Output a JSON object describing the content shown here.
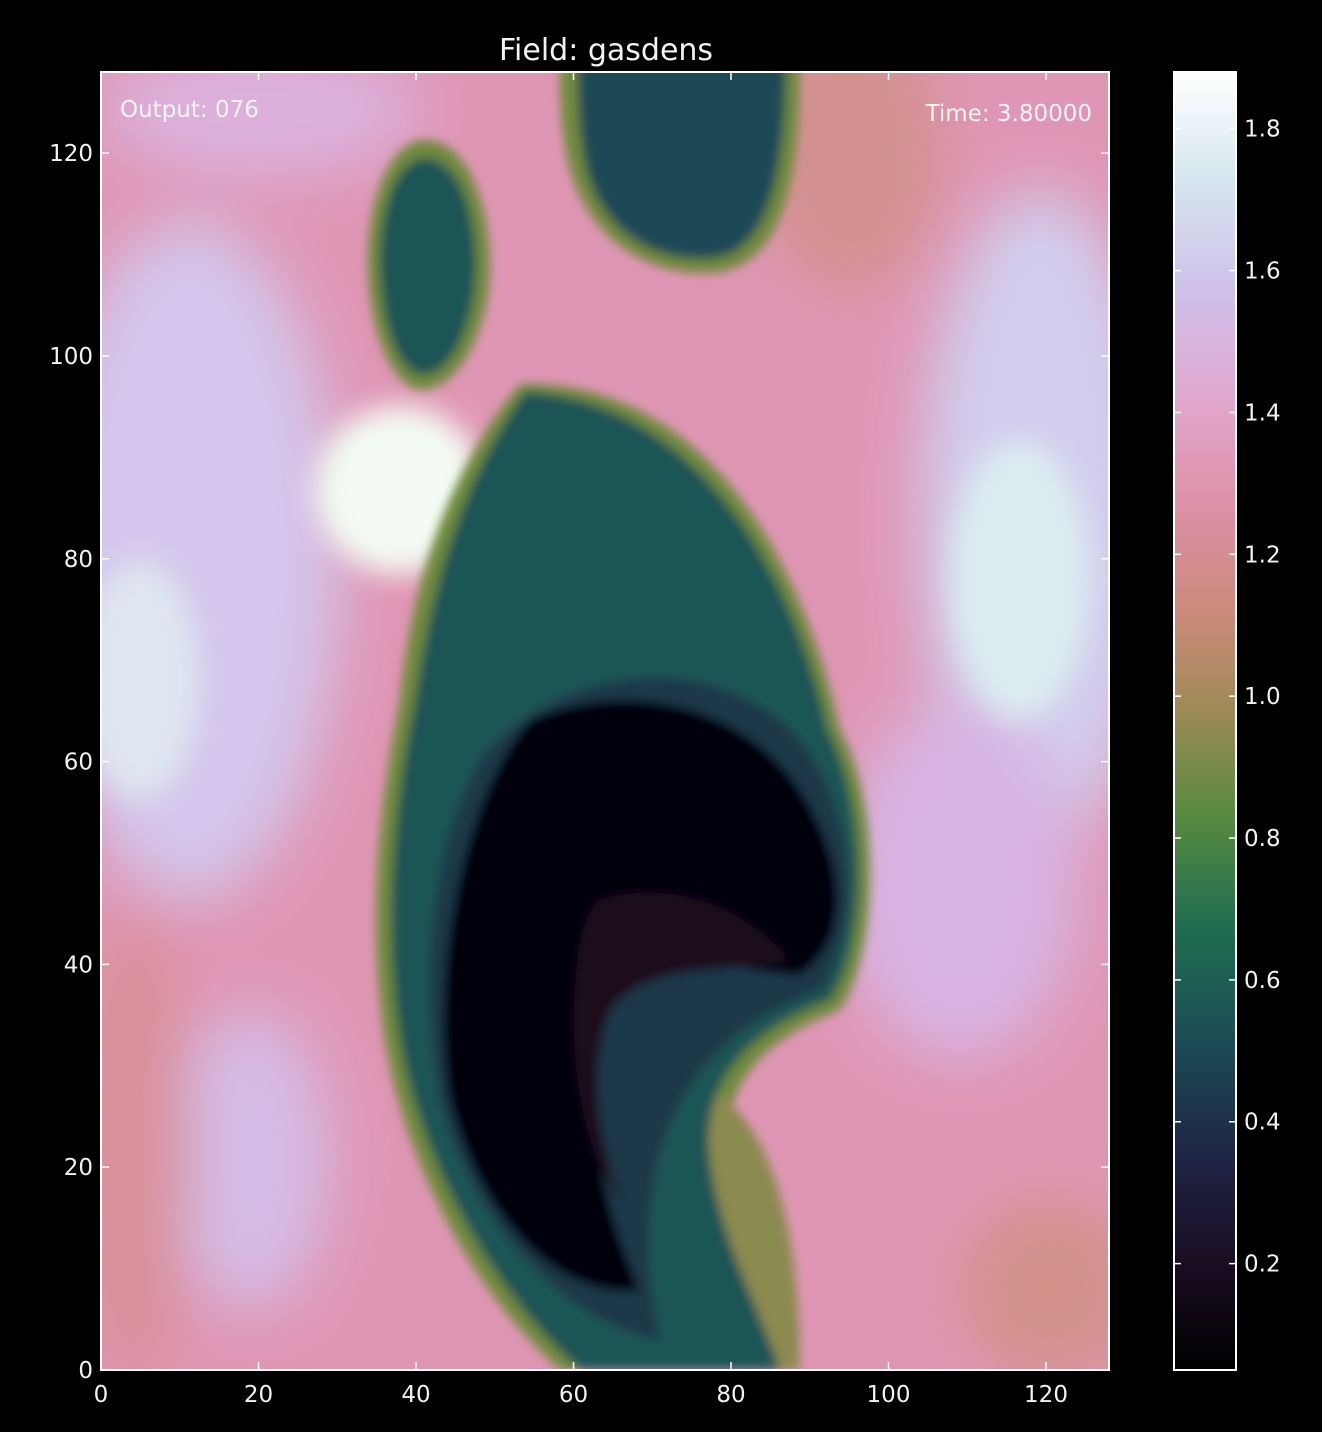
{
  "chart_data": {
    "type": "heatmap",
    "title": "Field: gasdens",
    "xlabel": "",
    "ylabel": "",
    "xlim": [
      0,
      128
    ],
    "ylim": [
      0,
      128
    ],
    "x_ticks": [
      "0",
      "20",
      "40",
      "60",
      "80",
      "100",
      "120"
    ],
    "y_ticks": [
      "0",
      "20",
      "40",
      "60",
      "80",
      "100",
      "120"
    ],
    "annotations": {
      "output": "Output: 076",
      "time": "Time: 3.80000"
    },
    "colormap": "cubehelix",
    "colorbar": {
      "range": [
        0.05,
        1.88
      ],
      "ticks": [
        "0.2",
        "0.4",
        "0.6",
        "0.8",
        "1.0",
        "1.2",
        "1.4",
        "1.6",
        "1.8"
      ]
    },
    "background": "#000000",
    "field_features": [
      {
        "shape": "cavity",
        "x": 62,
        "y": 40,
        "rx": 12,
        "ry": 22,
        "value": 0.1
      },
      {
        "shape": "envelope",
        "x": 64,
        "y": 45,
        "rx": 22,
        "ry": 45,
        "value": 0.5
      },
      {
        "shape": "blob",
        "x": 40,
        "y": 108,
        "rx": 7,
        "ry": 11,
        "value": 0.45
      },
      {
        "shape": "blob",
        "x": 74,
        "y": 122,
        "rx": 12,
        "ry": 11,
        "value": 0.4
      },
      {
        "shape": "bright",
        "x": 38,
        "y": 87,
        "rx": 8,
        "ry": 7,
        "value": 1.85
      },
      {
        "shape": "bright",
        "x": 118,
        "y": 84,
        "rx": 9,
        "ry": 14,
        "value": 1.6
      }
    ]
  }
}
